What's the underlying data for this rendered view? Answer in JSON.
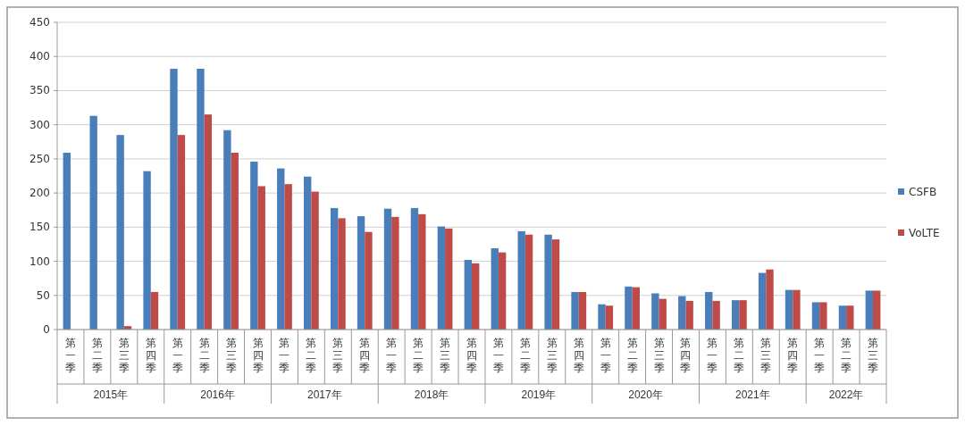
{
  "chart_data": {
    "type": "bar",
    "categories": [
      "第一季",
      "第二季",
      "第三季",
      "第四季",
      "第一季",
      "第二季",
      "第三季",
      "第四季",
      "第一季",
      "第二季",
      "第三季",
      "第四季",
      "第一季",
      "第二季",
      "第三季",
      "第四季",
      "第一季",
      "第二季",
      "第三季",
      "第四季",
      "第一季",
      "第二季",
      "第三季",
      "第四季",
      "第一季",
      "第二季",
      "第三季",
      "第四季",
      "第一季",
      "第二季",
      "第三季"
    ],
    "series": [
      {
        "name": "CSFB",
        "color": "#4a7ebb",
        "values": [
          259,
          313,
          285,
          232,
          382,
          382,
          292,
          246,
          236,
          224,
          178,
          166,
          177,
          178,
          151,
          102,
          119,
          144,
          139,
          55,
          37,
          63,
          53,
          49,
          55,
          43,
          83,
          58,
          40,
          35,
          57
        ]
      },
      {
        "name": "VoLTE",
        "color": "#be4b48",
        "values": [
          null,
          null,
          5,
          55,
          285,
          315,
          259,
          210,
          213,
          202,
          163,
          143,
          165,
          169,
          148,
          97,
          113,
          139,
          132,
          55,
          35,
          62,
          45,
          42,
          42,
          43,
          88,
          58,
          40,
          35,
          57
        ]
      }
    ],
    "annotations": [
      "2015年",
      "2016年",
      "2017年",
      "2018年",
      "2019年",
      "2020年",
      "2021年",
      "2022年"
    ],
    "ylim": [
      0,
      450
    ],
    "yticks": [
      0,
      50,
      100,
      150,
      200,
      250,
      300,
      350,
      400,
      450
    ],
    "grid": "y",
    "legend": "right"
  }
}
